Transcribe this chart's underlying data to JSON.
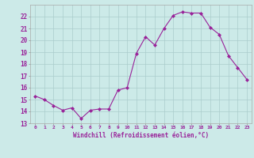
{
  "x": [
    0,
    1,
    2,
    3,
    4,
    5,
    6,
    7,
    8,
    9,
    10,
    11,
    12,
    13,
    14,
    15,
    16,
    17,
    18,
    19,
    20,
    21,
    22,
    23
  ],
  "y": [
    15.3,
    15.0,
    14.5,
    14.1,
    14.3,
    13.4,
    14.1,
    14.2,
    14.2,
    15.8,
    16.0,
    18.9,
    20.3,
    19.6,
    21.0,
    22.1,
    22.4,
    22.3,
    22.3,
    21.1,
    20.5,
    18.7,
    17.7,
    16.7
  ],
  "line_color": "#992299",
  "marker": "D",
  "marker_size": 2,
  "bg_color": "#cceae8",
  "grid_color": "#aacccc",
  "xlabel": "Windchill (Refroidissement éolien,°C)",
  "xlabel_color": "#992299",
  "tick_color": "#992299",
  "ylim": [
    13,
    23.0
  ],
  "xlim": [
    -0.5,
    23.5
  ],
  "yticks": [
    13,
    14,
    15,
    16,
    17,
    18,
    19,
    20,
    21,
    22
  ],
  "xticks": [
    0,
    1,
    2,
    3,
    4,
    5,
    6,
    7,
    8,
    9,
    10,
    11,
    12,
    13,
    14,
    15,
    16,
    17,
    18,
    19,
    20,
    21,
    22,
    23
  ],
  "figwidth": 3.2,
  "figheight": 2.0,
  "dpi": 100
}
